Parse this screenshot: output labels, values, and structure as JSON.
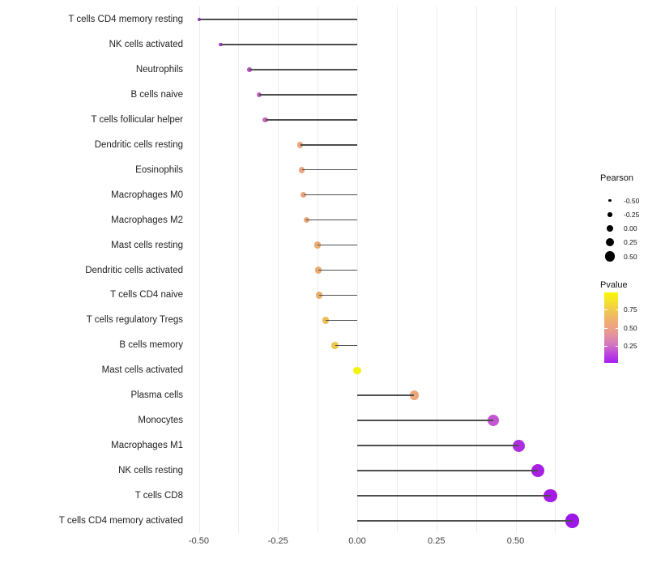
{
  "chart_data": {
    "type": "lollipop",
    "orientation": "horizontal",
    "title": "",
    "xlabel": "",
    "ylabel": "",
    "baseline": 0,
    "xlim": [
      -0.52,
      0.71
    ],
    "grid": "vertical-only",
    "background": "#ffffff",
    "gridline_color": "#ececec",
    "stem_color": "#4d4d4d",
    "categories": [
      "T cells CD4 memory resting",
      "NK cells activated",
      "Neutrophils",
      "B cells naive",
      "T cells follicular helper",
      "Dendritic cells resting",
      "Eosinophils",
      "Macrophages M0",
      "Macrophages M2",
      "Mast cells resting",
      "Dendritic cells activated",
      "T cells CD4 naive",
      "T cells regulatory  Tregs",
      "B cells memory",
      "Mast cells activated",
      "Plasma cells",
      "Monocytes",
      "Macrophages M1",
      "NK cells resting",
      "T cells CD8",
      "T cells CD4 memory activated"
    ],
    "series": [
      {
        "name": "Pearson",
        "values": [
          -0.5,
          -0.43,
          -0.34,
          -0.31,
          -0.29,
          -0.18,
          -0.175,
          -0.17,
          -0.16,
          -0.125,
          -0.123,
          -0.12,
          -0.1,
          -0.07,
          0.0,
          0.18,
          0.43,
          0.51,
          0.57,
          0.61,
          0.68
        ]
      },
      {
        "name": "Pvalue (estimated from color scale)",
        "values": [
          0.15,
          0.2,
          0.28,
          0.32,
          0.35,
          0.6,
          0.6,
          0.6,
          0.61,
          0.63,
          0.63,
          0.64,
          0.7,
          0.74,
          0.97,
          0.62,
          0.3,
          0.17,
          0.12,
          0.1,
          0.07
        ]
      }
    ],
    "point_colors": [
      "#9b2ed5",
      "#ad3fc9",
      "#ba52c4",
      "#c75fc0",
      "#cb68bc",
      "#eba47e",
      "#eba47e",
      "#eaa37d",
      "#e9a77a",
      "#eaac74",
      "#eaac74",
      "#e9af6e",
      "#ecbd58",
      "#eec64c",
      "#f4f310",
      "#eba87a",
      "#c456d4",
      "#ae2dde",
      "#a81fe2",
      "#a31be4",
      "#9d17e6"
    ]
  },
  "x_axis": {
    "tick_labels": [
      "-0.50",
      "-0.25",
      "0.00",
      "0.25",
      "0.50"
    ],
    "tick_values": [
      -0.5,
      -0.25,
      0,
      0.25,
      0.5
    ],
    "minor_tick_values": [
      -0.375,
      -0.125,
      0.125,
      0.375,
      0.625
    ]
  },
  "legend_size": {
    "title": "Pearson",
    "entries": [
      {
        "label": "-0.50",
        "value": -0.5
      },
      {
        "label": "-0.25",
        "value": -0.25
      },
      {
        "label": "0.00",
        "value": 0.0
      },
      {
        "label": "0.25",
        "value": 0.25
      },
      {
        "label": "0.50",
        "value": 0.5
      }
    ]
  },
  "legend_color": {
    "title": "Pvalue",
    "tick_labels": [
      "0.75",
      "0.50",
      "0.25"
    ],
    "tick_fractions_from_top": [
      0.24,
      0.505,
      0.76
    ],
    "gradient_top_to_bottom": [
      "#f9f706",
      "#f5e32b",
      "#f2c94e",
      "#efb36b",
      "#eca284",
      "#e18fa4",
      "#d173c2",
      "#bb44dd",
      "#a81ef0"
    ]
  }
}
